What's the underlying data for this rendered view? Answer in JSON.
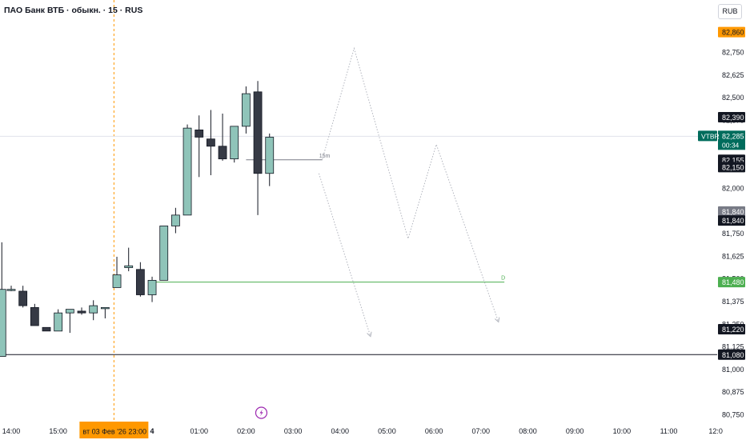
{
  "header": {
    "title": "ПАО Банк ВТБ · обыкн. · 15 · RUS",
    "currency_button": "RUB"
  },
  "colors": {
    "up": "#8fc4b9",
    "down": "#363a45",
    "last_price": "#006c5c",
    "high_marker": "#ff9800",
    "green_line": "#4caf50",
    "gray_badge": "#787b86",
    "session_line": "#ff9800"
  },
  "chart_data": {
    "type": "candlestick",
    "price_axis": {
      "min": 80.7,
      "max": 82.9,
      "ticks": [
        "82,750",
        "82,625",
        "82,500",
        "82,375",
        "82,250",
        "82,000",
        "81,875",
        "81,750",
        "81,625",
        "81,500",
        "81,375",
        "81,250",
        "81,125",
        "81,000",
        "80,875",
        "80,750"
      ]
    },
    "time_axis": {
      "ticks": [
        {
          "label": "14:00",
          "t": 0
        },
        {
          "label": "15:00",
          "t": 4
        },
        {
          "label": "4",
          "t": 12
        },
        {
          "label": "01:00",
          "t": 16
        },
        {
          "label": "02:00",
          "t": 20
        },
        {
          "label": "03:00",
          "t": 24
        },
        {
          "label": "04:00",
          "t": 28
        },
        {
          "label": "05:00",
          "t": 32
        },
        {
          "label": "06:00",
          "t": 36
        },
        {
          "label": "07:00",
          "t": 40
        },
        {
          "label": "08:00",
          "t": 44
        },
        {
          "label": "09:00",
          "t": 48
        },
        {
          "label": "10:00",
          "t": 52
        },
        {
          "label": "11:00",
          "t": 56
        },
        {
          "label": "12:0",
          "t": 60
        }
      ],
      "session_label": "вт 03 Фев '26   23:00",
      "session_t": 8.75
    },
    "candles": [
      {
        "t": -0.8,
        "o": 81.07,
        "h": 81.7,
        "l": 81.07,
        "c": 81.44
      },
      {
        "t": 0,
        "o": 81.44,
        "h": 81.46,
        "l": 81.43,
        "c": 81.44
      },
      {
        "t": 1,
        "o": 81.43,
        "h": 81.46,
        "l": 81.34,
        "c": 81.35
      },
      {
        "t": 2,
        "o": 81.34,
        "h": 81.36,
        "l": 81.24,
        "c": 81.24
      },
      {
        "t": 3,
        "o": 81.23,
        "h": 81.23,
        "l": 81.21,
        "c": 81.21
      },
      {
        "t": 4,
        "o": 81.21,
        "h": 81.33,
        "l": 81.21,
        "c": 81.31
      },
      {
        "t": 5,
        "o": 81.31,
        "h": 81.33,
        "l": 81.2,
        "c": 81.33
      },
      {
        "t": 6,
        "o": 81.32,
        "h": 81.34,
        "l": 81.3,
        "c": 81.31
      },
      {
        "t": 7,
        "o": 81.31,
        "h": 81.38,
        "l": 81.27,
        "c": 81.35
      },
      {
        "t": 8,
        "o": 81.34,
        "h": 81.34,
        "l": 81.28,
        "c": 81.34
      },
      {
        "t": 9,
        "o": 81.45,
        "h": 81.62,
        "l": 81.45,
        "c": 81.52
      },
      {
        "t": 10,
        "o": 81.56,
        "h": 81.67,
        "l": 81.54,
        "c": 81.57
      },
      {
        "t": 11,
        "o": 81.55,
        "h": 81.59,
        "l": 81.4,
        "c": 81.41
      },
      {
        "t": 12,
        "o": 81.41,
        "h": 81.51,
        "l": 81.37,
        "c": 81.49
      },
      {
        "t": 13,
        "o": 81.49,
        "h": 81.79,
        "l": 81.49,
        "c": 81.79
      },
      {
        "t": 14,
        "o": 81.79,
        "h": 81.89,
        "l": 81.75,
        "c": 81.85
      },
      {
        "t": 15,
        "o": 81.85,
        "h": 82.35,
        "l": 81.85,
        "c": 82.33
      },
      {
        "t": 16,
        "o": 82.32,
        "h": 82.4,
        "l": 82.06,
        "c": 82.28
      },
      {
        "t": 17,
        "o": 82.27,
        "h": 82.43,
        "l": 82.07,
        "c": 82.23
      },
      {
        "t": 18,
        "o": 82.23,
        "h": 82.41,
        "l": 82.15,
        "c": 82.16
      },
      {
        "t": 19,
        "o": 82.16,
        "h": 82.34,
        "l": 82.14,
        "c": 82.34
      },
      {
        "t": 20,
        "o": 82.34,
        "h": 82.56,
        "l": 82.3,
        "c": 82.52
      },
      {
        "t": 21,
        "o": 82.53,
        "h": 82.59,
        "l": 81.85,
        "c": 82.08
      },
      {
        "t": 22,
        "o": 82.08,
        "h": 82.3,
        "l": 82.01,
        "c": 82.28
      }
    ],
    "horizontal_lines": [
      {
        "price": 81.48,
        "t_start": 12,
        "t_end": 42,
        "label": "D",
        "color": "#4caf50"
      },
      {
        "price": 82.155,
        "t_start": 20,
        "t_end": 26.5,
        "label": "15m",
        "color": "#787b86"
      }
    ],
    "full_line": {
      "price": 81.08
    },
    "projection_paths": [
      {
        "points": [
          [
            26.5,
            82.16
          ],
          [
            29.2,
            82.77
          ],
          [
            33.8,
            81.72
          ],
          [
            36.2,
            82.24
          ],
          [
            41.5,
            81.26
          ]
        ]
      },
      {
        "points": [
          [
            26.2,
            82.08
          ],
          [
            30.6,
            81.18
          ]
        ]
      }
    ],
    "price_labels": [
      {
        "label": "82,860",
        "price": 82.86,
        "bg": "#ff9800",
        "fg": "#131722"
      },
      {
        "label": "82,390",
        "price": 82.39,
        "bg": "#131722",
        "fg": "#ffffff"
      },
      {
        "label": "82,155",
        "price": 82.155,
        "bg": "#131722",
        "fg": "#ffffff"
      },
      {
        "label": "82,150",
        "price": 82.115,
        "bg": "#131722",
        "fg": "#ffffff"
      },
      {
        "label": "81,840",
        "price": 81.87,
        "bg": "#787b86",
        "fg": "#ffffff"
      },
      {
        "label": "81,840",
        "price": 81.82,
        "bg": "#131722",
        "fg": "#ffffff"
      },
      {
        "label": "81,480",
        "price": 81.48,
        "bg": "#4caf50",
        "fg": "#ffffff"
      },
      {
        "label": "81,220",
        "price": 81.22,
        "bg": "#131722",
        "fg": "#ffffff"
      },
      {
        "label": "81,080",
        "price": 81.08,
        "bg": "#131722",
        "fg": "#ffffff"
      }
    ],
    "last_price": {
      "symbol": "VTBR",
      "price_label": "82,285",
      "countdown": "00:34",
      "price": 82.285
    },
    "event_marker": {
      "t": 21.3,
      "icon": "lightning-icon"
    }
  }
}
